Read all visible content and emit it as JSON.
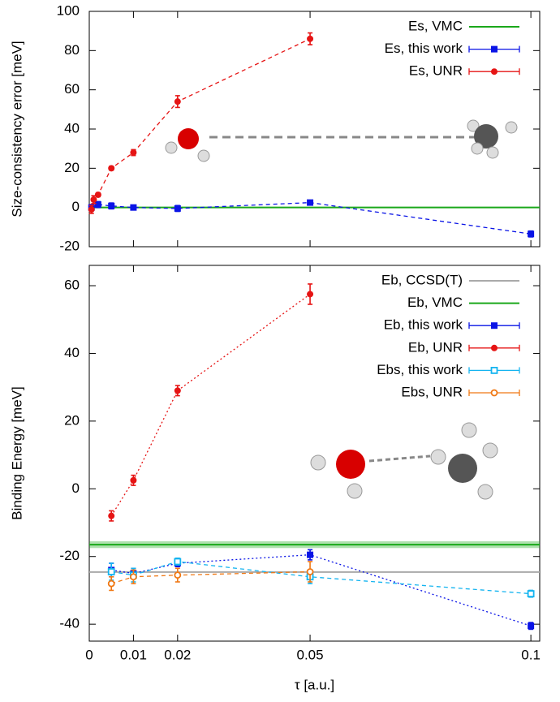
{
  "chart_data": [
    {
      "type": "line",
      "ylabel": "Size-consistency error [meV]",
      "xlim": [
        0,
        0.102
      ],
      "ylim": [
        -20,
        100
      ],
      "xticks": [
        0,
        0.01,
        0.02,
        0.05,
        0.1
      ],
      "xtick_labels": false,
      "yticks": [
        -20,
        0,
        20,
        40,
        60,
        80,
        100
      ],
      "legend": "upper right",
      "series": [
        {
          "name": "Es, VMC",
          "type": "hline",
          "color": "#1aa81a",
          "values": [
            0
          ]
        },
        {
          "name": "Es, this work",
          "color": "#0a14e6",
          "marker": "square",
          "filled": true,
          "linestyle": "dashed",
          "x": [
            0.0005,
            0.002,
            0.005,
            0.01,
            0.02,
            0.05,
            0.1
          ],
          "values": [
            0,
            1.5,
            0.8,
            0,
            -0.5,
            2.5,
            -13.5
          ],
          "errors": [
            1.5,
            1.5,
            1.5,
            1,
            1.5,
            1,
            1.5
          ]
        },
        {
          "name": "Es, UNR",
          "color": "#e61414",
          "marker": "circle",
          "filled": true,
          "linestyle": "dashed",
          "x": [
            0.0005,
            0.001,
            0.002,
            0.005,
            0.01,
            0.02,
            0.05
          ],
          "values": [
            -1,
            4,
            6.5,
            20,
            28,
            54,
            86
          ],
          "errors": [
            2,
            2,
            1,
            1,
            1.5,
            3,
            3
          ]
        }
      ]
    },
    {
      "type": "line",
      "ylabel": "Binding Energy [meV]",
      "xlabel": "τ [a.u.]",
      "xlim": [
        0,
        0.102
      ],
      "ylim": [
        -45,
        66
      ],
      "xticks": [
        0,
        0.01,
        0.02,
        0.05,
        0.1
      ],
      "xtick_labels": true,
      "yticks": [
        -40,
        -20,
        0,
        20,
        40,
        60
      ],
      "legend": "upper right",
      "series": [
        {
          "name": "Eb, CCSD(T)",
          "type": "hline",
          "color": "#aaaaaa",
          "values": [
            -24.6
          ]
        },
        {
          "name": "Eb, VMC",
          "type": "hline",
          "color": "#1aa81a",
          "values": [
            -16.5
          ],
          "errors": [
            1
          ]
        },
        {
          "name": "Eb, this work",
          "color": "#0a14e6",
          "marker": "square",
          "filled": true,
          "linestyle": "dotted",
          "x": [
            0.005,
            0.01,
            0.02,
            0.05,
            0.1
          ],
          "values": [
            -24,
            -25,
            -22,
            -19.5,
            -40.5
          ],
          "errors": [
            2,
            1.5,
            1,
            1.5,
            1
          ]
        },
        {
          "name": "Eb, UNR",
          "color": "#e61414",
          "marker": "circle",
          "filled": true,
          "linestyle": "dotted",
          "x": [
            0.005,
            0.01,
            0.02,
            0.05
          ],
          "values": [
            -8,
            2.5,
            29,
            57.5
          ],
          "errors": [
            1.5,
            1.5,
            1.5,
            3
          ]
        },
        {
          "name": "Ebs, this work",
          "color": "#14b4f0",
          "marker": "square",
          "filled": false,
          "linestyle": "dashed",
          "x": [
            0.005,
            0.01,
            0.02,
            0.05,
            0.1
          ],
          "values": [
            -24.5,
            -25.5,
            -21.5,
            -26,
            -31
          ],
          "errors": [
            2.5,
            2,
            1,
            2,
            1
          ]
        },
        {
          "name": "Ebs, UNR",
          "color": "#f07814",
          "marker": "circle",
          "filled": false,
          "linestyle": "dashed",
          "x": [
            0.005,
            0.01,
            0.02,
            0.05
          ],
          "values": [
            -28,
            -26,
            -25.5,
            -24.5
          ],
          "errors": [
            2,
            2,
            2,
            3
          ]
        }
      ]
    }
  ]
}
